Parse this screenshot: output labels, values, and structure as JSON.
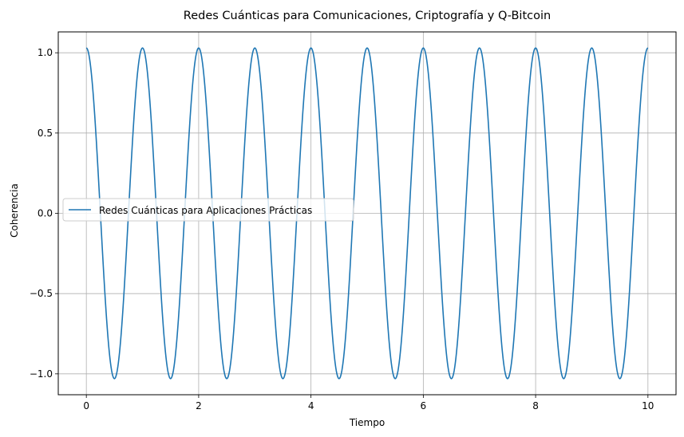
{
  "chart_data": {
    "type": "line",
    "title": "Redes Cuánticas para Comunicaciones, Criptografía y Q-Bitcoin",
    "xlabel": "Tiempo",
    "ylabel": "Coherencia",
    "xlim": [
      -0.5,
      10.5
    ],
    "ylim": [
      -1.13,
      1.13
    ],
    "x_ticks": [
      0,
      2,
      4,
      6,
      8,
      10
    ],
    "x_tick_labels": [
      "0",
      "2",
      "4",
      "6",
      "8",
      "10"
    ],
    "y_ticks": [
      -1.0,
      -0.5,
      0.0,
      0.5,
      1.0
    ],
    "y_tick_labels": [
      "−1.0",
      "−0.5",
      "0.0",
      "0.5",
      "1.0"
    ],
    "grid": true,
    "legend_position": "center-left",
    "series": [
      {
        "name": "Redes Cuánticas para Aplicaciones Prácticas",
        "color": "#1f77b4",
        "function": "y = 1.03 * cos(2π x)",
        "amplitude": 1.03,
        "frequency": 1.0,
        "x_range": [
          0,
          10
        ]
      }
    ]
  }
}
